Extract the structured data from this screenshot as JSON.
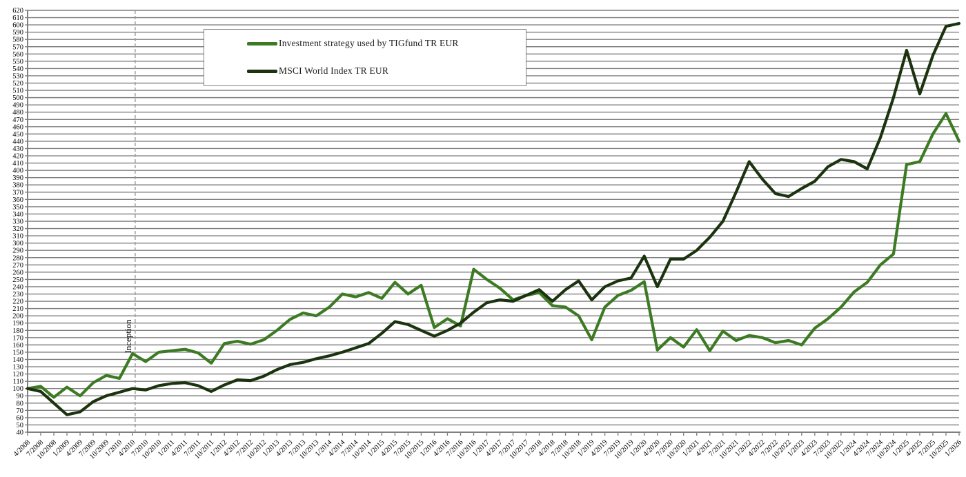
{
  "legend": {
    "items": [
      {
        "label": "Investment strategy used by TIGfund TR EUR",
        "color": "#3c7b23"
      },
      {
        "label": "MSCI World Index TR EUR",
        "color": "#1b330e"
      }
    ]
  },
  "annotation": {
    "inception_label": "Inception",
    "inception_between": [
      "4/2010",
      "7/2010"
    ],
    "inception_x_index": 8.2,
    "line_style": "dashed",
    "line_color": "#9a9a9a"
  },
  "axes": {
    "y_min": 40,
    "y_max": 620,
    "y_step": 10,
    "axis_color": "#808080",
    "gridline_color": "#7f7f7f"
  },
  "chart_data": {
    "type": "line",
    "title": "",
    "xlabel": "",
    "ylabel": "",
    "ylim": [
      40,
      620
    ],
    "ytick_step": 10,
    "grid": "horizontal",
    "legend_position": "top-left-inside",
    "x": [
      "4/2008",
      "7/2008",
      "10/2008",
      "1/2009",
      "4/2009",
      "7/2009",
      "10/2009",
      "1/2010",
      "4/2010",
      "7/2010",
      "10/2010",
      "1/2011",
      "4/2011",
      "7/2011",
      "10/2011",
      "1/2012",
      "4/2012",
      "7/2012",
      "10/2012",
      "1/2013",
      "4/2013",
      "7/2013",
      "10/2013",
      "1/2014",
      "4/2014",
      "7/2014",
      "10/2014",
      "1/2015",
      "4/2015",
      "7/2015",
      "10/2015",
      "1/2016",
      "4/2016",
      "7/2016",
      "10/2016",
      "1/2017",
      "4/2017",
      "7/2017",
      "10/2017",
      "1/2018",
      "4/2018",
      "7/2018",
      "10/2018",
      "1/2019",
      "4/2019",
      "7/2019",
      "10/2019",
      "1/2020",
      "4/2020",
      "7/2020",
      "10/2020",
      "1/2021",
      "4/2021",
      "7/2021",
      "10/2021",
      "1/2022",
      "4/2022",
      "7/2022",
      "10/2022",
      "1/2023",
      "4/2023",
      "7/2023",
      "10/2023",
      "1/2024",
      "4/2024",
      "7/2024",
      "10/2024",
      "1/2025",
      "4/2025",
      "7/2025",
      "10/2025",
      "1/2026"
    ],
    "series": [
      {
        "name": "Investment strategy used by TIGfund TR EUR",
        "color": "#3c7b23",
        "values": [
          100,
          103,
          88,
          102,
          90,
          108,
          118,
          114,
          148,
          137,
          150,
          152,
          154,
          149,
          135,
          162,
          165,
          161,
          167,
          180,
          195,
          204,
          200,
          212,
          230,
          226,
          232,
          224,
          246,
          230,
          242,
          184,
          196,
          186,
          264,
          250,
          238,
          222,
          228,
          232,
          214,
          212,
          200,
          167,
          212,
          228,
          235,
          247,
          153,
          170,
          157,
          181,
          152,
          179,
          166,
          173,
          170,
          163,
          166,
          160,
          183,
          196,
          212,
          233,
          246,
          270,
          285,
          408,
          412,
          450,
          478,
          440
        ]
      },
      {
        "name": "MSCI World Index TR EUR",
        "color": "#1b330e",
        "values": [
          100,
          96,
          80,
          64,
          68,
          82,
          90,
          95,
          100,
          98,
          104,
          107,
          108,
          104,
          96,
          105,
          112,
          111,
          117,
          126,
          133,
          136,
          141,
          145,
          150,
          156,
          162,
          176,
          192,
          188,
          180,
          172,
          180,
          190,
          205,
          218,
          222,
          220,
          228,
          236,
          220,
          236,
          248,
          222,
          240,
          248,
          252,
          282,
          240,
          278,
          278,
          290,
          308,
          330,
          370,
          412,
          388,
          368,
          364,
          375,
          385,
          405,
          415,
          412,
          402,
          445,
          500,
          565,
          505,
          558,
          598,
          602
        ]
      }
    ]
  }
}
